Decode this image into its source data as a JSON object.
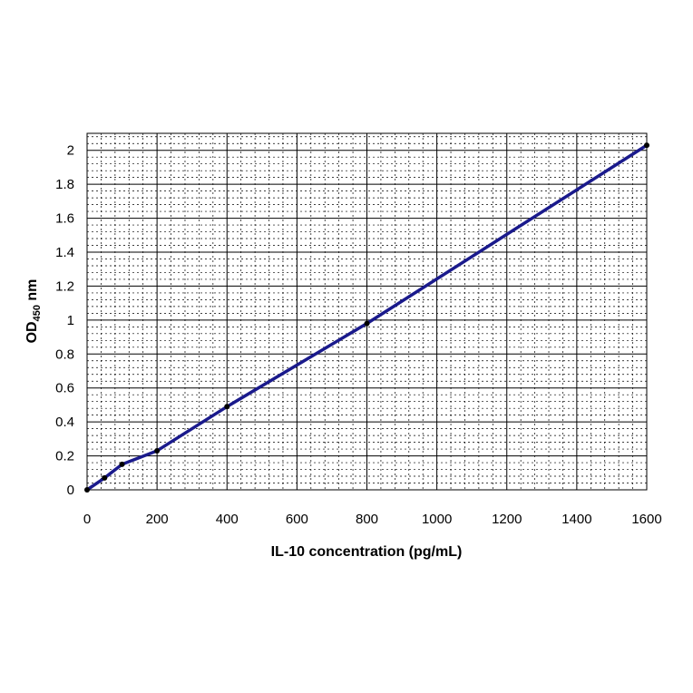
{
  "chart_data": {
    "type": "line",
    "title": "",
    "xlabel": "IL-10 concentration (pg/mL)",
    "ylabel": {
      "main": "OD",
      "subscript": "450",
      "suffix": " nm"
    },
    "xlim": [
      0,
      1600
    ],
    "ylim": [
      0,
      2.1
    ],
    "x_ticks": [
      "0",
      "200",
      "400",
      "600",
      "800",
      "1000",
      "1200",
      "1400",
      "1600"
    ],
    "y_ticks": [
      "0",
      "0.2",
      "0.4",
      "0.6",
      "0.8",
      "1",
      "1.2",
      "1.4",
      "1.6",
      "1.8",
      "2"
    ],
    "grid": true,
    "minor_grid": true,
    "legend": "none",
    "series": [
      {
        "color": "#1a1a8c",
        "marker_color": "#000000",
        "x": [
          0,
          50,
          100,
          200,
          400,
          800,
          1600
        ],
        "y": [
          0.0,
          0.07,
          0.15,
          0.23,
          0.49,
          0.98,
          2.03
        ]
      }
    ]
  }
}
